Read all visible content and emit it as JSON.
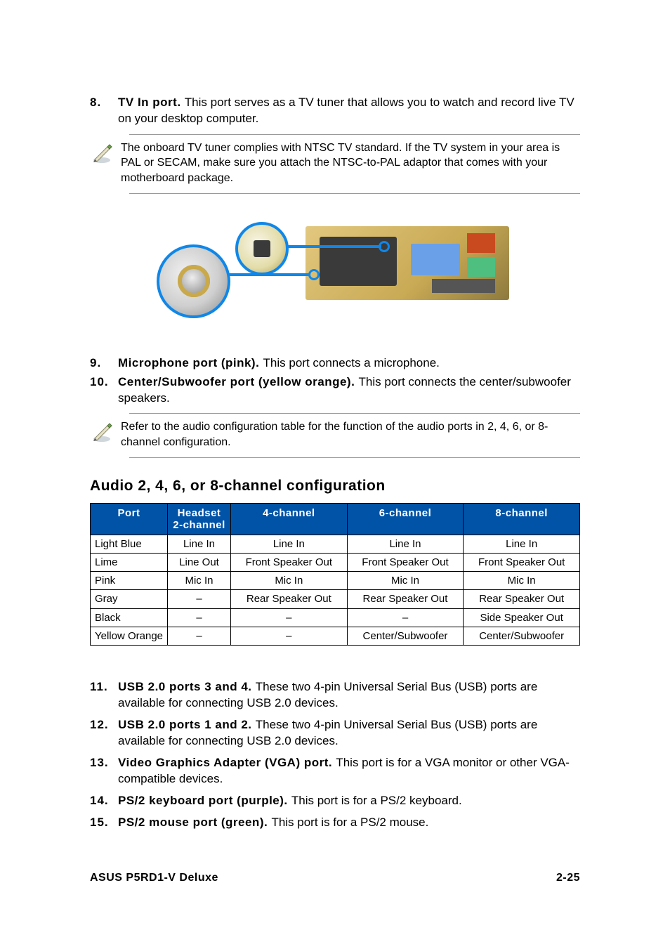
{
  "colors": {
    "callout_ring": "#1087e8",
    "table_header_bg": "#0053a6",
    "table_header_fg": "#ffffff",
    "rule": "#9a9a9a",
    "text": "#000000"
  },
  "port_items_a": [
    {
      "num": "8.",
      "title": "TV In port.",
      "desc": "This port serves as a TV tuner that allows you to watch and record live TV on your desktop computer."
    }
  ],
  "note_a": "The onboard TV tuner complies with NTSC TV standard. If the TV system in your area is PAL or SECAM, make sure you attach the NTSC-to-PAL adaptor that comes with your motherboard package.",
  "port_items_b": [
    {
      "num": "9.",
      "title": "Microphone port (pink).",
      "desc": "This port connects a microphone."
    },
    {
      "num": "10.",
      "title": "Center/Subwoofer port (yellow orange).",
      "desc": "This port connects the center/subwoofer speakers."
    }
  ],
  "note_b": "Refer to the audio configuration table for the function of the audio ports in 2, 4, 6, or 8-channel configuration.",
  "audio_heading": "Audio 2, 4, 6, or 8-channel configuration",
  "audio_table": {
    "columns": [
      "Port",
      "Headset\n2-channel",
      "4-channel",
      "6-channel",
      "8-channel"
    ],
    "rows": [
      [
        "Light Blue",
        "Line In",
        "Line In",
        "Line In",
        "Line In"
      ],
      [
        "Lime",
        "Line Out",
        "Front Speaker Out",
        "Front Speaker Out",
        "Front Speaker Out"
      ],
      [
        "Pink",
        "Mic In",
        "Mic In",
        "Mic In",
        "Mic In"
      ],
      [
        "Gray",
        "–",
        "Rear Speaker Out",
        "Rear Speaker Out",
        "Rear Speaker Out"
      ],
      [
        "Black",
        "–",
        "–",
        "–",
        "Side Speaker Out"
      ],
      [
        "Yellow Orange",
        "–",
        "–",
        "Center/Subwoofer",
        "Center/Subwoofer"
      ]
    ]
  },
  "port_items_c": [
    {
      "num": "11.",
      "title": "USB 2.0 ports 3 and 4.",
      "desc": "These two 4-pin Universal Serial Bus (USB) ports are available for connecting USB 2.0 devices."
    },
    {
      "num": "12.",
      "title": "USB 2.0 ports 1 and 2.",
      "desc": "These two 4-pin Universal Serial Bus (USB) ports are available for connecting USB 2.0 devices."
    },
    {
      "num": "13.",
      "title": "Video Graphics Adapter (VGA) port.",
      "desc": "This port is for a VGA monitor or other VGA-compatible devices."
    },
    {
      "num": "14.",
      "title": "PS/2 keyboard port (purple).",
      "desc": "This port is for a PS/2 keyboard."
    },
    {
      "num": "15.",
      "title": "PS/2 mouse port (green).",
      "desc": "This port is for a PS/2 mouse."
    }
  ],
  "footer": {
    "left": "ASUS P5RD1-V Deluxe",
    "right": "2-25"
  }
}
